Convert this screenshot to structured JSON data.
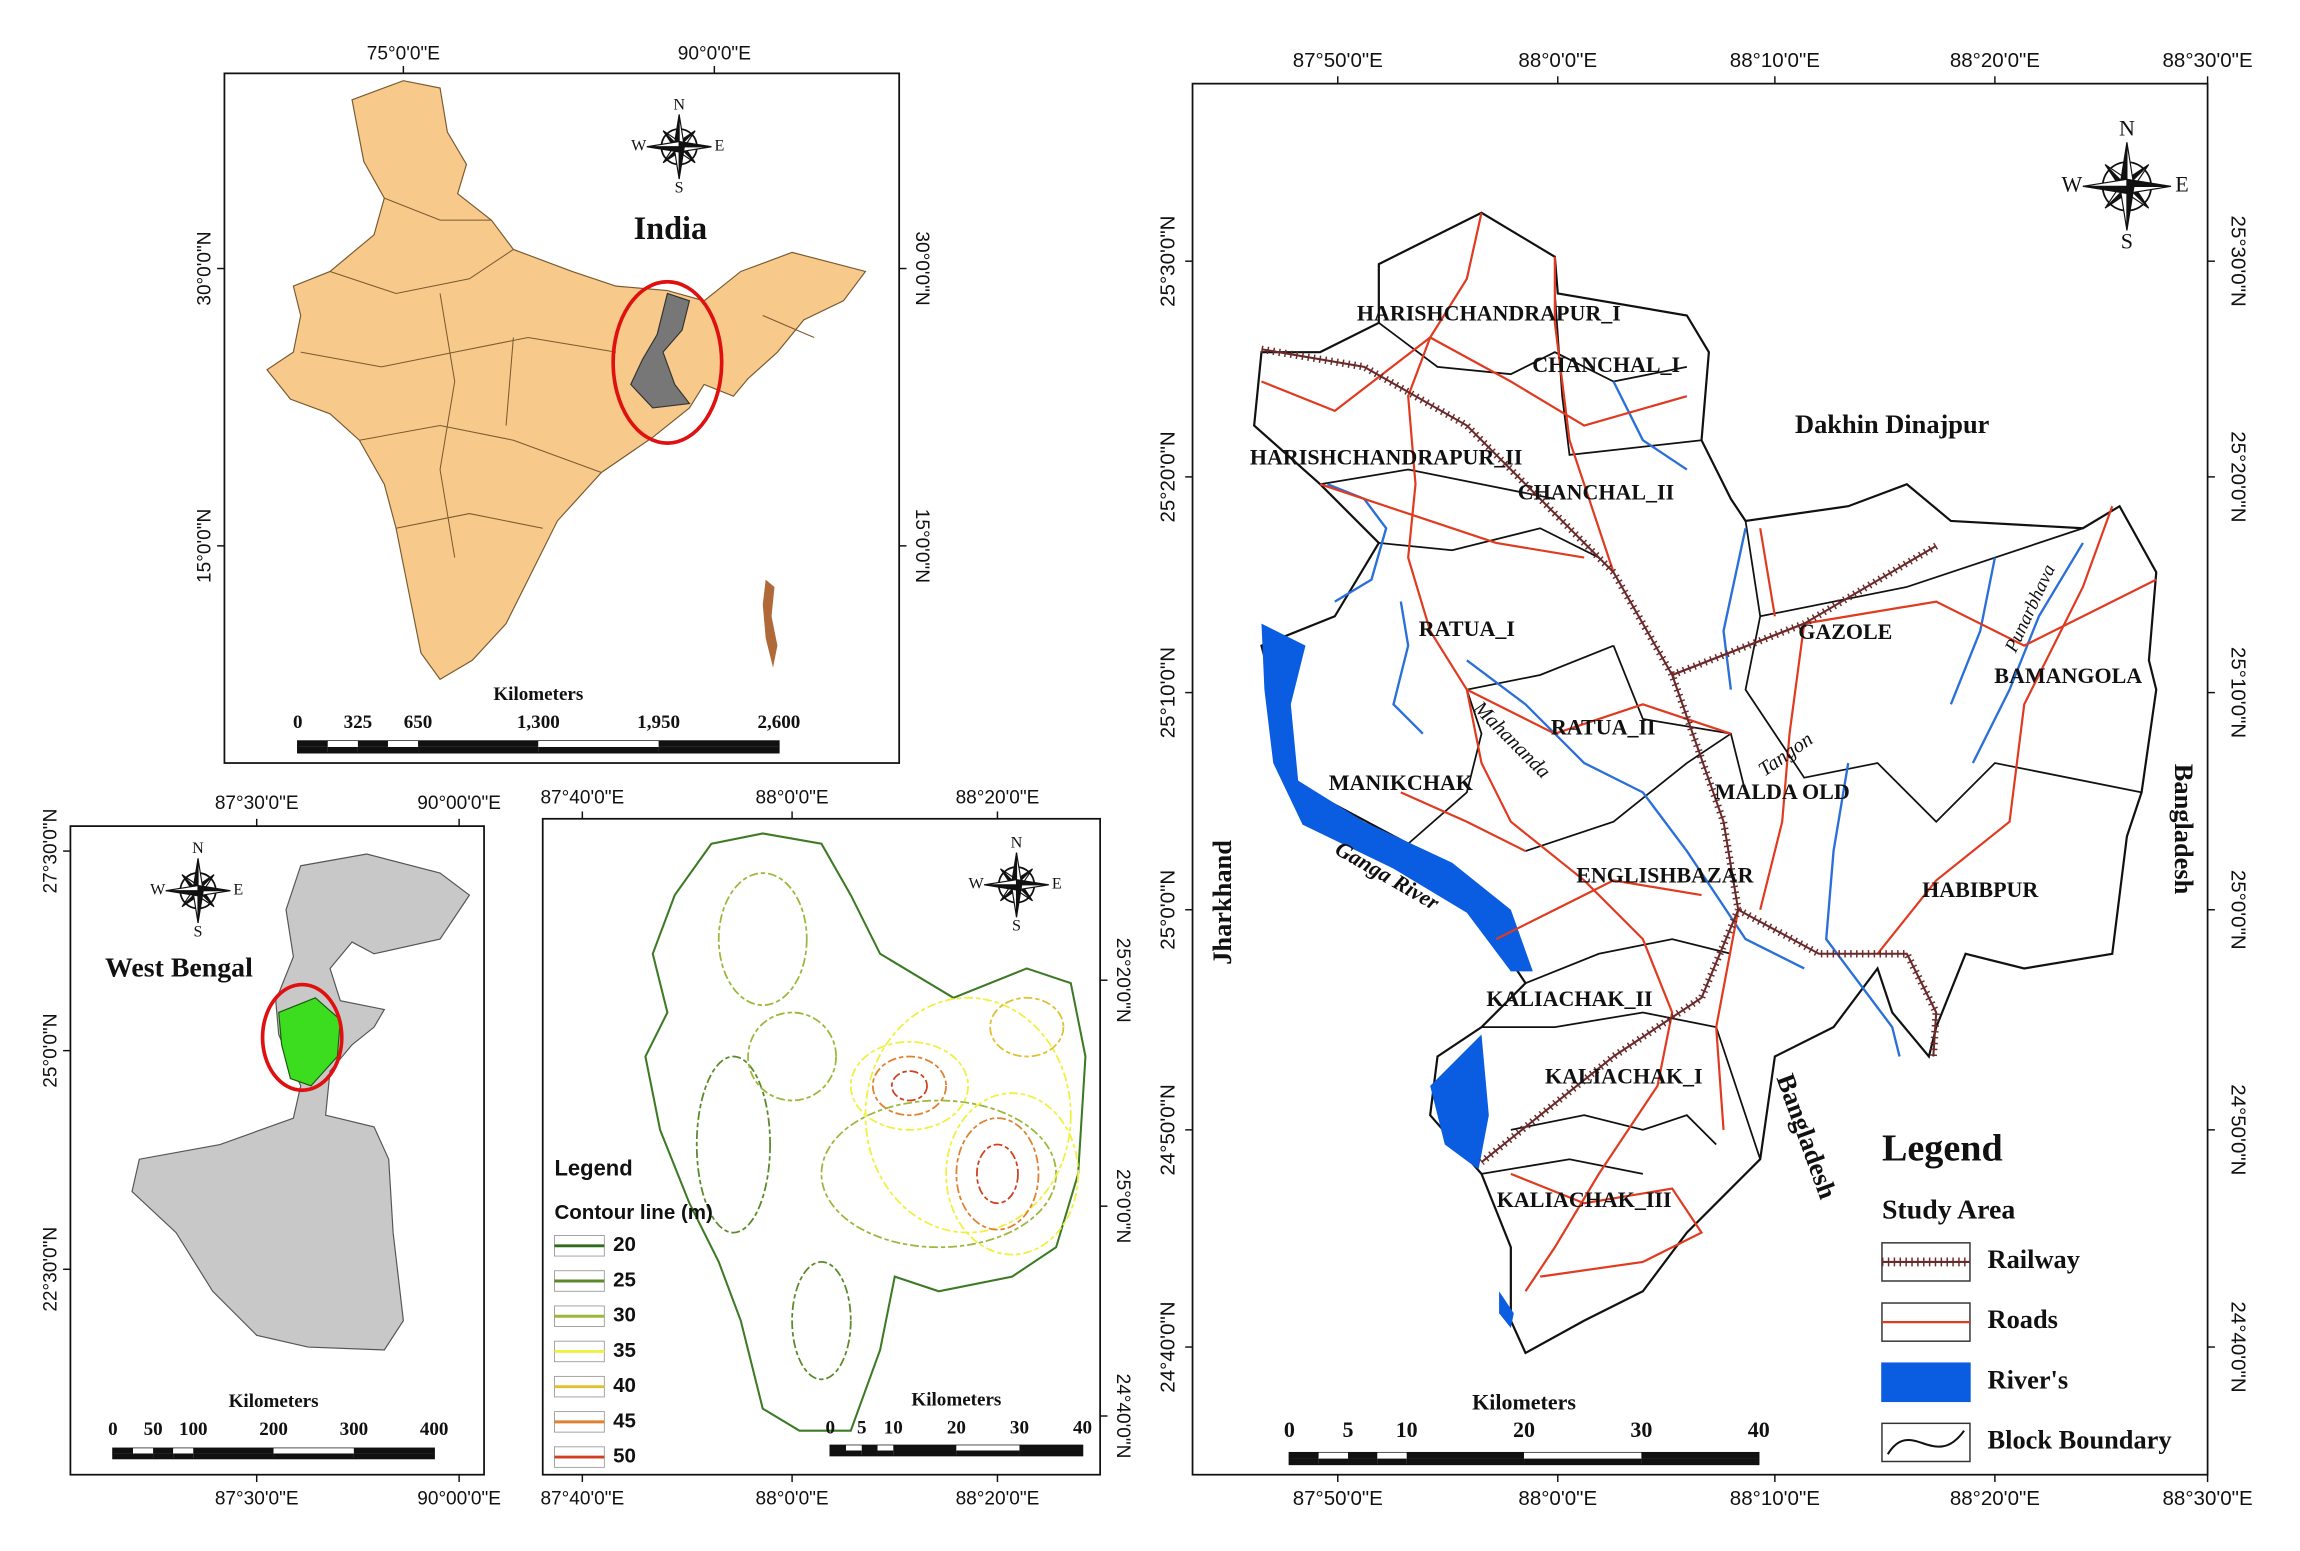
{
  "india_map": {
    "title": "India",
    "lon_labels": [
      "75°0'0\"E",
      "90°0'0\"E"
    ],
    "lat_labels": [
      "30°0'0\"N",
      "15°0'0\"N"
    ],
    "compass": {
      "n": "N",
      "e": "E",
      "s": "S",
      "w": "W"
    },
    "scale": {
      "unit": "Kilometers",
      "labels": [
        "0",
        "325",
        "650",
        "1,300",
        "1,950",
        "2,600"
      ]
    }
  },
  "west_bengal_map": {
    "title": "West Bengal",
    "lon_labels": [
      "87°30'0\"E",
      "90°00'0\"E"
    ],
    "lat_labels": [
      "27°30'0\"N",
      "25°0'0\"N",
      "22°30'0\"N"
    ],
    "compass": {
      "n": "N",
      "e": "E",
      "s": "S",
      "w": "W"
    },
    "scale": {
      "unit": "Kilometers",
      "labels": [
        "0",
        "50",
        "100",
        "200",
        "300",
        "400"
      ]
    }
  },
  "contour_map": {
    "lon_labels": [
      "87°40'0\"E",
      "88°0'0\"E",
      "88°20'0\"E"
    ],
    "lat_labels": [
      "25°20'0\"N",
      "25°0'0\"N",
      "24°40'0\"N"
    ],
    "compass": {
      "n": "N",
      "e": "E",
      "s": "S",
      "w": "W"
    },
    "legend": {
      "title": "Legend",
      "subtitle": "Contour line (m)",
      "items": [
        20,
        25,
        30,
        35,
        40,
        45,
        50
      ]
    },
    "scale": {
      "unit": "Kilometers",
      "labels": [
        "0",
        "5",
        "10",
        "20",
        "30",
        "40"
      ]
    }
  },
  "study_area_map": {
    "lon_labels": [
      "87°50'0\"E",
      "88°0'0\"E",
      "88°10'0\"E",
      "88°20'0\"E",
      "88°30'0\"E"
    ],
    "lat_labels": [
      "25°30'0\"N",
      "25°20'0\"N",
      "25°10'0\"N",
      "25°0'0\"N",
      "24°50'0\"N",
      "24°40'0\"N"
    ],
    "compass": {
      "n": "N",
      "e": "E",
      "s": "S",
      "w": "W"
    },
    "blocks": [
      "HARISHCHANDRAPUR_I",
      "CHANCHAL_I",
      "HARISHCHANDRAPUR_II",
      "CHANCHAL_II",
      "RATUA_I",
      "GAZOLE",
      "BAMANGOLA",
      "RATUA_II",
      "MANIKCHAK",
      "MALDA OLD",
      "ENGLISHBAZAR",
      "HABIBPUR",
      "KALIACHAK_II",
      "KALIACHAK_I",
      "KALIACHAK_III"
    ],
    "neighbours": [
      "Dakhin Dinajpur",
      "Jharkhand",
      "Bangladesh",
      "Bangladesh"
    ],
    "rivers": [
      "Ganga River",
      "Mahananda",
      "Tangon",
      "Punarbhava"
    ],
    "legend": {
      "title": "Legend",
      "subtitle": "Study Area",
      "items": [
        "Railway",
        "Roads",
        "River's",
        "Block Boundary"
      ]
    },
    "scale": {
      "unit": "Kilometers",
      "labels": [
        "0",
        "5",
        "10",
        "20",
        "30",
        "40"
      ]
    }
  }
}
